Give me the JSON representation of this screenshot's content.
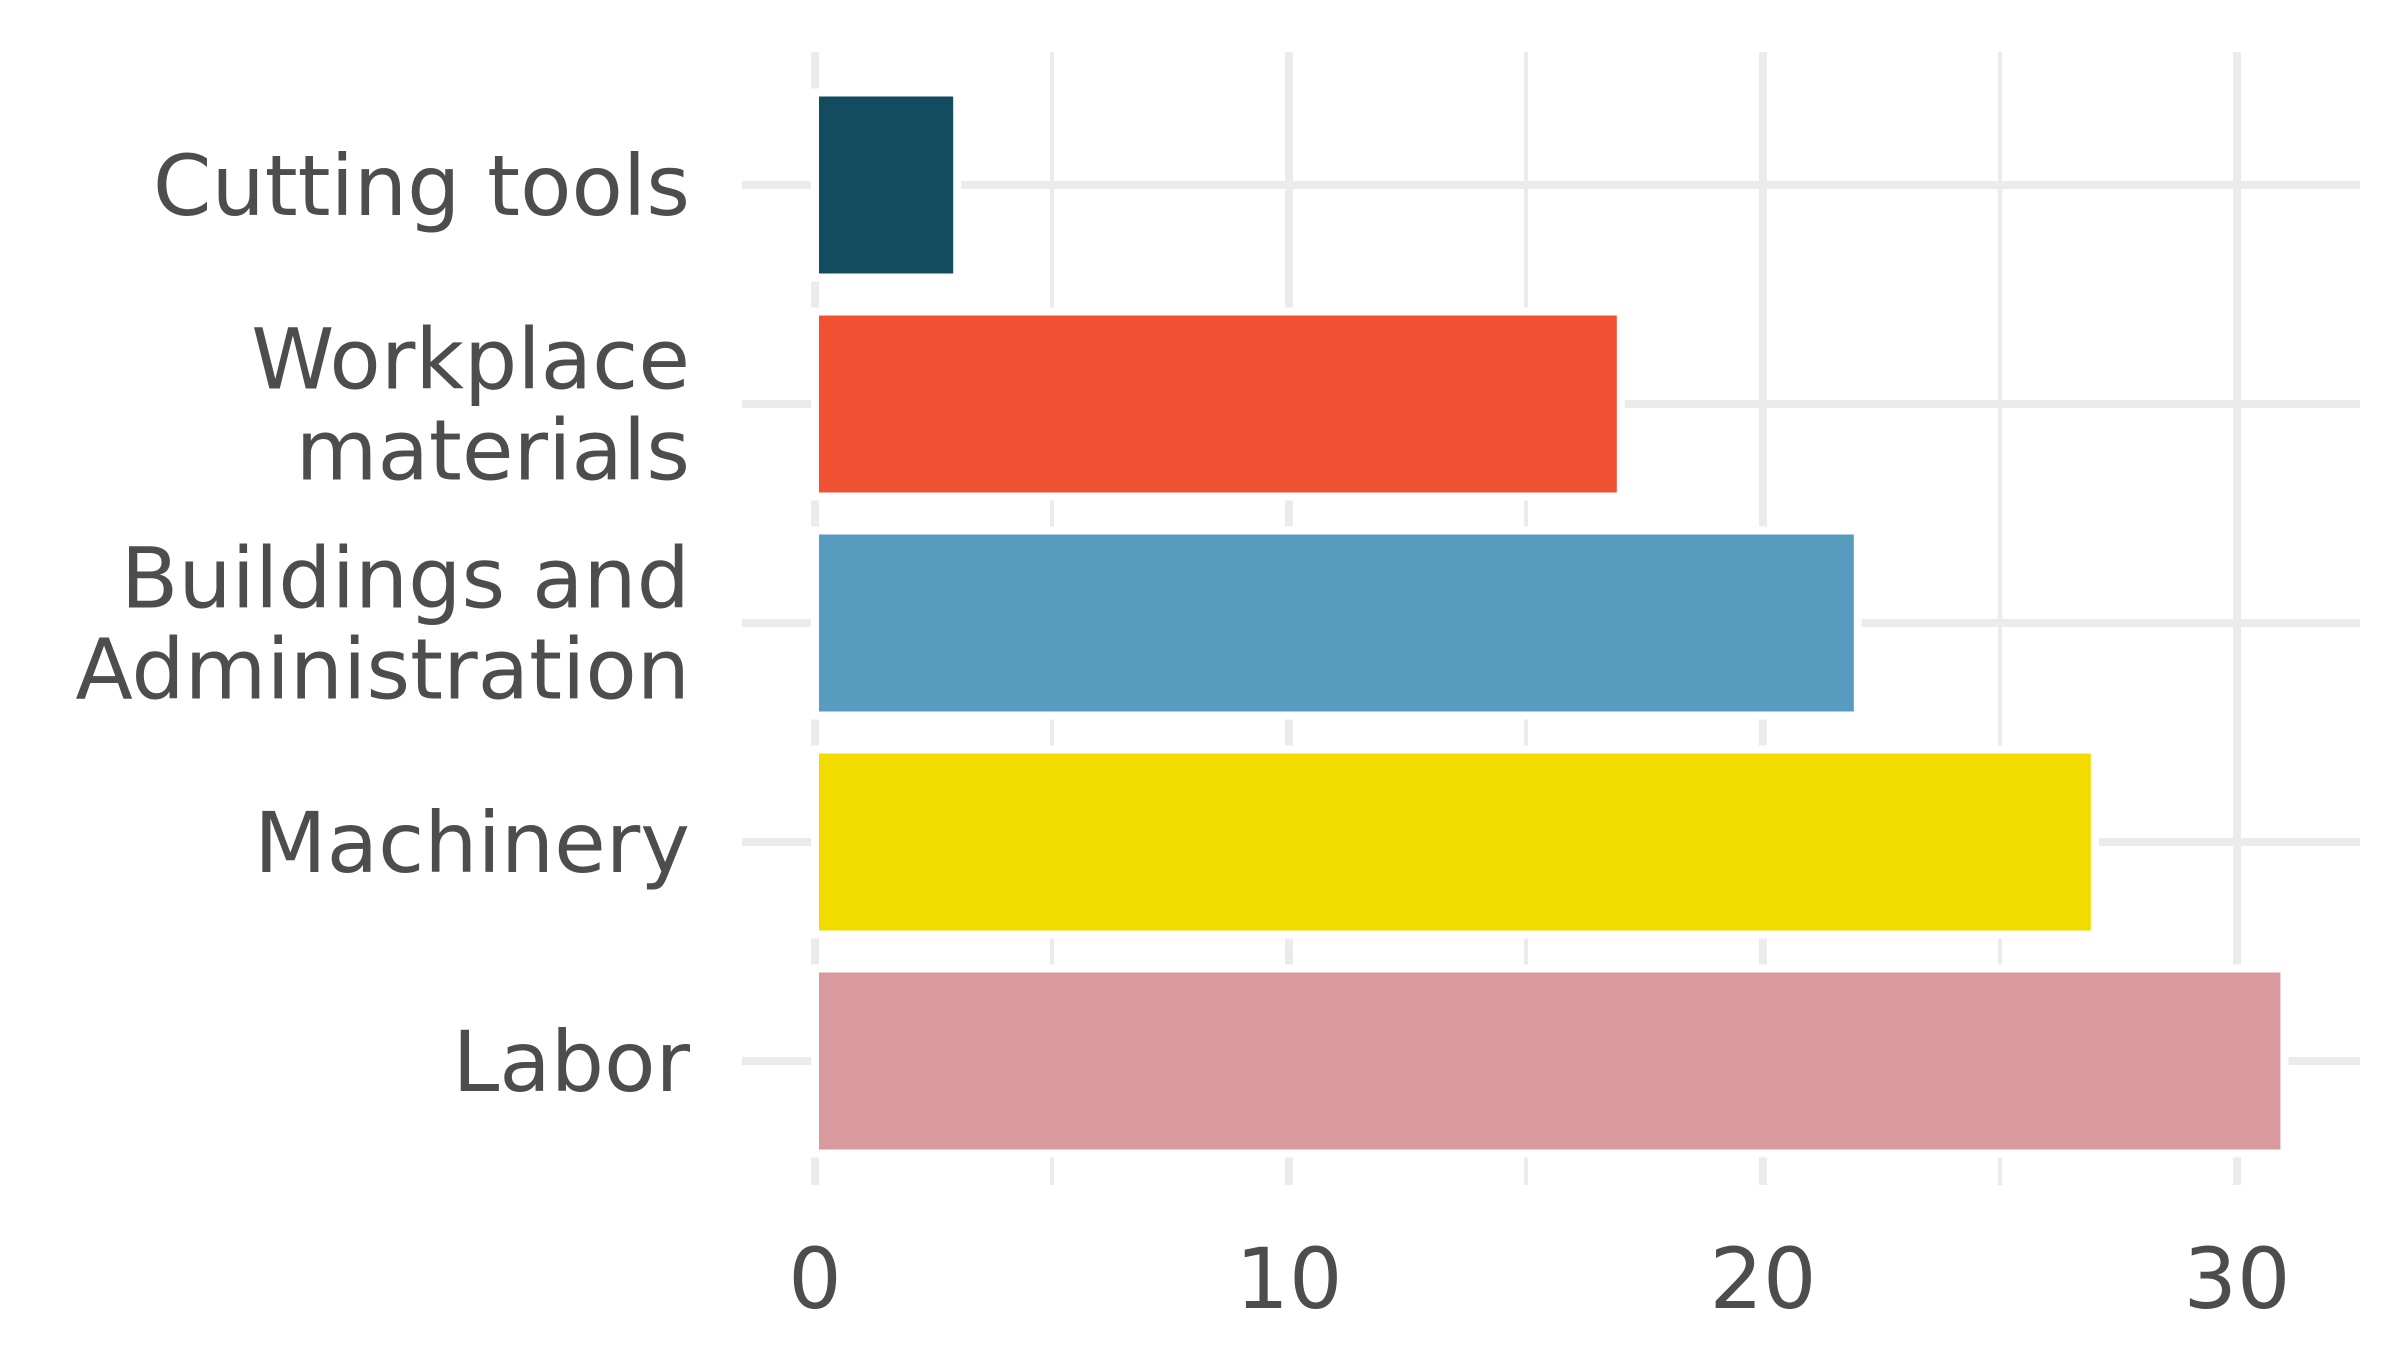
{
  "chart_data": {
    "type": "bar",
    "orientation": "horizontal",
    "categories": [
      [
        "Cutting tools"
      ],
      [
        "Workplace",
        "materials"
      ],
      [
        "Buildings and",
        "Administration"
      ],
      [
        "Machinery"
      ],
      [
        "Labor"
      ]
    ],
    "values": [
      3,
      17,
      22,
      27,
      31
    ],
    "colors": [
      "#134b5f",
      "#f05133",
      "#579bbf",
      "#f2dc00",
      "#d99a9e"
    ],
    "xlim": [
      0,
      32.5
    ],
    "xticks": [
      0,
      10,
      20,
      30
    ],
    "xtick_labels": [
      "0",
      "10",
      "20",
      "30"
    ],
    "grid": true,
    "grid_color": "#ebebeb",
    "text_color": "#4d4d4d",
    "title": "",
    "xlabel": "",
    "ylabel": ""
  }
}
